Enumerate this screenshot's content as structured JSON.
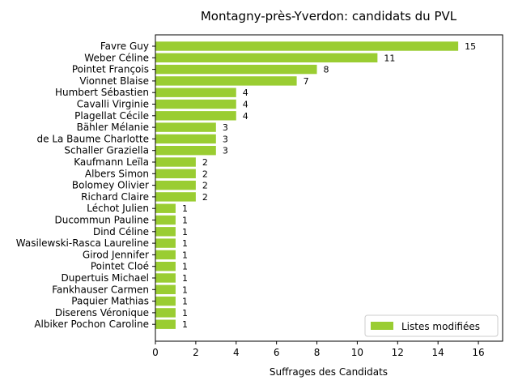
{
  "chart_data": {
    "type": "bar",
    "orientation": "horizontal",
    "title": "Montagny-près-Yverdon: candidats du PVL",
    "xlabel": "Suffrages des Candidats",
    "ylabel": "",
    "xlim": [
      0,
      17.2
    ],
    "xticks": [
      0,
      2,
      4,
      6,
      8,
      10,
      12,
      14,
      16
    ],
    "grid": false,
    "legend_position": "bottom-right",
    "bar_color": "#9acd32",
    "series": [
      {
        "name": "Listes modifiées",
        "values": [
          15,
          11,
          8,
          7,
          4,
          4,
          4,
          3,
          3,
          3,
          2,
          2,
          2,
          2,
          1,
          1,
          1,
          1,
          1,
          1,
          1,
          1,
          1,
          1,
          1
        ]
      }
    ],
    "categories": [
      "Favre Guy",
      "Weber Céline",
      "Pointet François",
      "Vionnet Blaise",
      "Humbert Sébastien",
      "Cavalli Virginie",
      "Plagellat Cécile",
      "Bähler Mélanie",
      "de La Baume Charlotte",
      "Schaller Graziella",
      "Kaufmann Leïla",
      "Albers Simon",
      "Bolomey Olivier",
      "Richard Claire",
      "Léchot Julien",
      "Ducommun Pauline",
      "Dind Céline",
      "Wasilewski-Rasca Laureline",
      "Girod Jennifer",
      "Pointet Cloé",
      "Dupertuis Michael",
      "Fankhauser Carmen",
      "Paquier Mathias",
      "Diserens Véronique",
      "Albiker Pochon Caroline"
    ]
  }
}
